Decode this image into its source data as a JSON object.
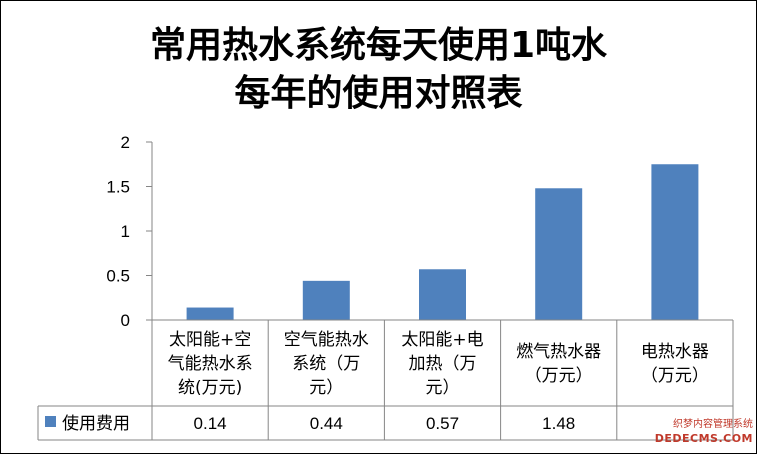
{
  "chart_data": {
    "type": "bar",
    "title_lines": [
      "常用热水系统每天使用1吨水",
      "每年的使用对照表"
    ],
    "categories": [
      [
        "太阳能+空",
        "气能热水系",
        "统(万元)"
      ],
      [
        "空气能热水",
        "系统（万",
        "元）"
      ],
      [
        "太阳能+电",
        "加热（万",
        "元）"
      ],
      [
        "燃气热水器",
        "（万元）"
      ],
      [
        "电热水器",
        "（万元）"
      ]
    ],
    "series": [
      {
        "name": "使用费用",
        "color": "#4f81bd",
        "values": [
          0.14,
          0.44,
          0.57,
          1.48,
          1.75
        ],
        "value_labels": [
          "0.14",
          "0.44",
          "0.57",
          "1.48",
          ""
        ]
      }
    ],
    "y_ticks": [
      "0",
      "0.5",
      "1",
      "1.5",
      "2"
    ],
    "ylim": [
      0,
      2
    ],
    "grid": false,
    "legend": "data-table-left",
    "data_table": true
  },
  "watermark": {
    "line1": "织梦内容管理系统",
    "line2": "DEDECMS.COM"
  }
}
